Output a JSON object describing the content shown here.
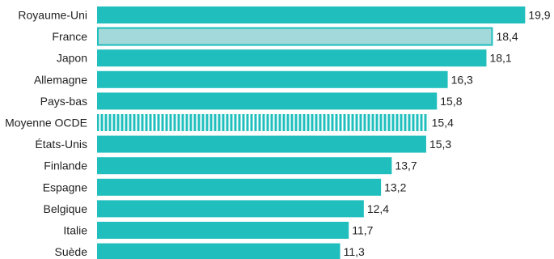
{
  "chart_data": {
    "type": "bar",
    "orientation": "horizontal",
    "categories": [
      "Royaume-Uni",
      "France",
      "Japon",
      "Allemagne",
      "Pays-bas",
      "Moyenne OCDE",
      "États-Unis",
      "Finlande",
      "Espagne",
      "Belgique",
      "Italie",
      "Suède"
    ],
    "values": [
      19.9,
      18.4,
      18.1,
      16.3,
      15.8,
      15.4,
      15.3,
      13.7,
      13.2,
      12.4,
      11.7,
      11.3
    ],
    "value_labels": [
      "19,9",
      "18,4",
      "18,1",
      "16,3",
      "15,8",
      "15,4",
      "15,3",
      "13,7",
      "13,2",
      "12,4",
      "11,7",
      "11,3"
    ],
    "styles": [
      "solid",
      "highlight",
      "solid",
      "solid",
      "solid",
      "striped",
      "solid",
      "solid",
      "solid",
      "solid",
      "solid",
      "solid"
    ],
    "xlim": [
      0,
      20
    ],
    "title": "",
    "xlabel": "",
    "ylabel": "",
    "grid": false,
    "colors": {
      "bar": "#20bfbd",
      "highlight_fill": "#a3d9da",
      "highlight_border": "#20bfbd",
      "stripe": "#ffffff"
    }
  }
}
